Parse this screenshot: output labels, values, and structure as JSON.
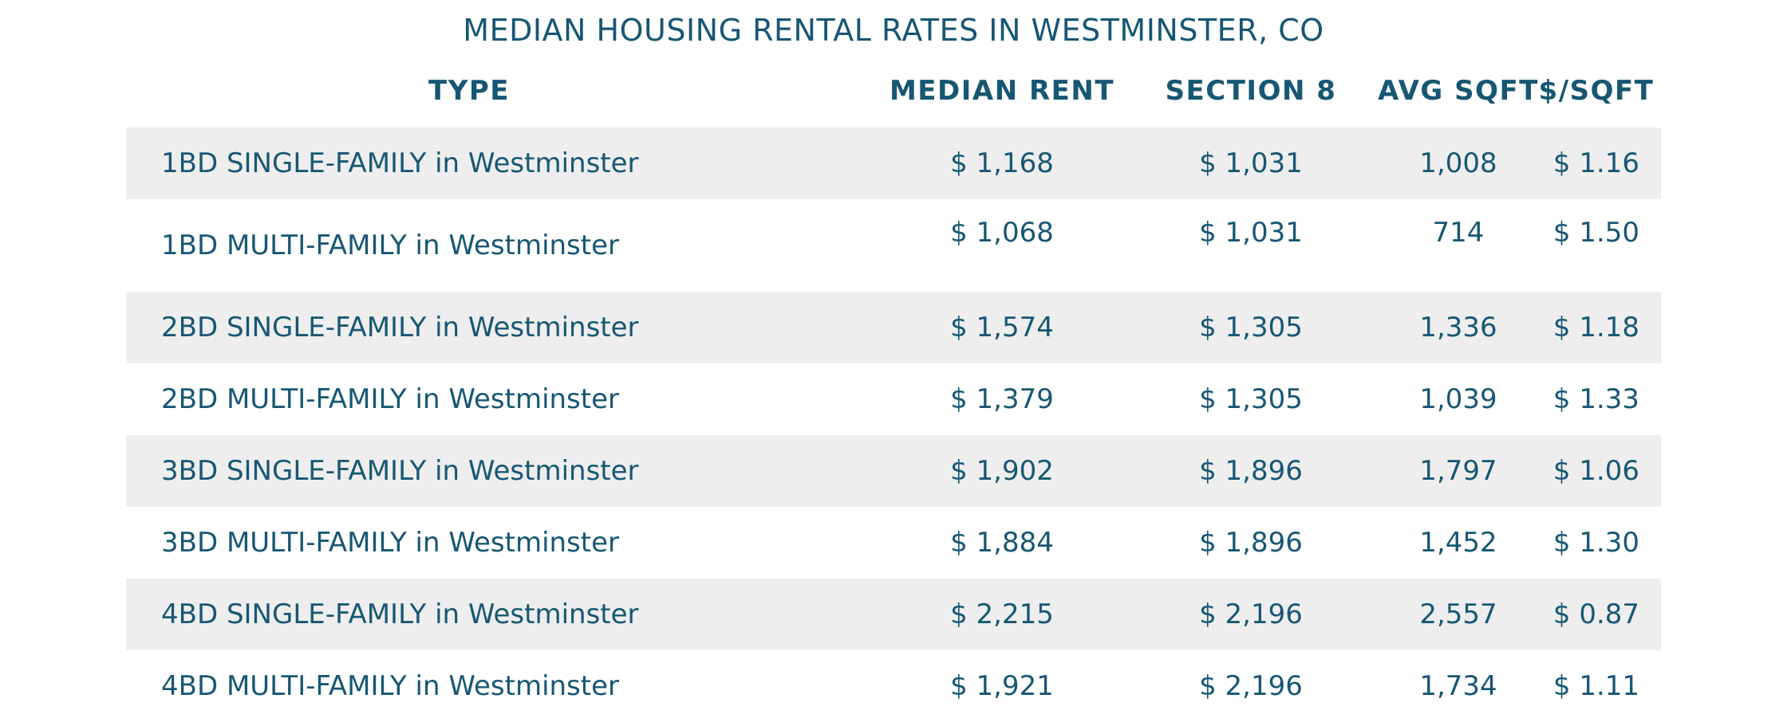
{
  "chart_data": {
    "type": "table",
    "title": "MEDIAN HOUSING RENTAL RATES IN WESTMINSTER, CO",
    "columns": [
      "TYPE",
      "MEDIAN RENT",
      "SECTION 8",
      "AVG SQFT",
      "$/SQFT"
    ],
    "rows": [
      [
        "1BD SINGLE-FAMILY in Westminster",
        "$ 1,168",
        "$ 1,031",
        "1,008",
        "$ 1.16"
      ],
      [
        "1BD MULTI-FAMILY in Westminster",
        "$ 1,068",
        "$ 1,031",
        "714",
        "$ 1.50"
      ],
      [
        "2BD SINGLE-FAMILY in Westminster",
        "$ 1,574",
        "$ 1,305",
        "1,336",
        "$ 1.18"
      ],
      [
        "2BD MULTI-FAMILY in Westminster",
        "$ 1,379",
        "$ 1,305",
        "1,039",
        "$ 1.33"
      ],
      [
        "3BD SINGLE-FAMILY in Westminster",
        "$ 1,902",
        "$ 1,896",
        "1,797",
        "$ 1.06"
      ],
      [
        "3BD MULTI-FAMILY in Westminster",
        "$ 1,884",
        "$ 1,896",
        "1,452",
        "$ 1.30"
      ],
      [
        "4BD SINGLE-FAMILY in Westminster",
        "$ 2,215",
        "$ 2,196",
        "2,557",
        "$ 0.87"
      ],
      [
        "4BD MULTI-FAMILY in Westminster",
        "$ 1,921",
        "$ 2,196",
        "1,734",
        "$ 1.11"
      ]
    ],
    "row_shading": [
      "shaded",
      "plain",
      "shaded",
      "plain",
      "shaded",
      "plain",
      "shaded",
      "plain"
    ],
    "colors": {
      "text": "#175773",
      "stripe": "#eeeeee",
      "background": "#ffffff"
    }
  }
}
